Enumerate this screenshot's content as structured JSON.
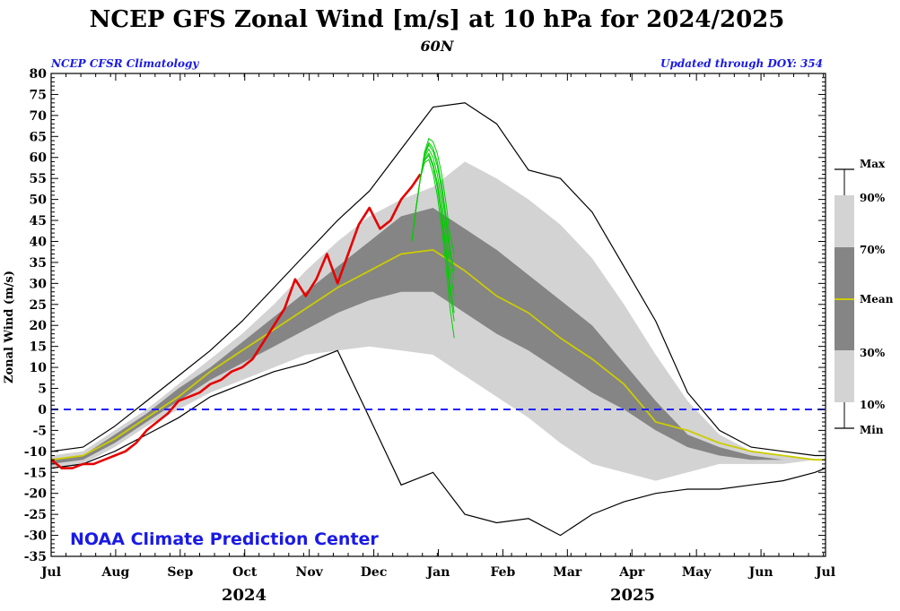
{
  "header": {
    "title": "NCEP GFS Zonal Wind [m/s] at 10 hPa for 2024/2025",
    "subtitle": "60N",
    "left_note": "NCEP CFSR Climatology",
    "right_note": "Updated through DOY: 354"
  },
  "credit": "NOAA Climate Prediction Center",
  "colors": {
    "note": "#1a1ae6",
    "credit": "#1a1ae6",
    "zero_line": "#2222ff",
    "observed": "#e60000",
    "forecast": "#00cc00",
    "mean": "#cccc00",
    "band_10_90": "#d3d3d3",
    "band_30_70": "#858585",
    "min_max": "#000000"
  },
  "legend": {
    "max": "Max",
    "p90": "90%",
    "p70": "70%",
    "mean": "Mean",
    "p30": "30%",
    "p10": "10%",
    "min": "Min"
  },
  "chart_data": {
    "type": "line",
    "title": "NCEP GFS Zonal Wind [m/s] at 10 hPa for 2024/2025",
    "subtitle": "60N",
    "ylabel": "Zonal Wind (m/s)",
    "xlabel": "",
    "ylim": [
      -35,
      80
    ],
    "yticks": [
      80,
      75,
      70,
      65,
      60,
      55,
      50,
      45,
      40,
      35,
      30,
      25,
      20,
      15,
      10,
      5,
      0,
      -5,
      -10,
      -15,
      -20,
      -25,
      -30,
      -35
    ],
    "xticks": [
      "Jul",
      "Aug",
      "Sep",
      "Oct",
      "Nov",
      "Dec",
      "Jan",
      "Feb",
      "Mar",
      "Apr",
      "May",
      "Jun",
      "Jul"
    ],
    "years": [
      "2024",
      "2025"
    ],
    "grid": false,
    "reference_line": 0,
    "x": [
      0,
      15,
      30,
      45,
      60,
      75,
      90,
      105,
      120,
      135,
      150,
      165,
      180,
      195,
      210,
      225,
      240,
      255,
      270,
      285,
      300,
      315,
      330,
      345,
      360,
      365
    ],
    "series": [
      {
        "name": "Max",
        "values": [
          -10,
          -9,
          -4,
          2,
          8,
          14,
          21,
          29,
          37,
          45,
          52,
          62,
          72,
          73,
          68,
          57,
          55,
          47,
          34,
          21,
          4,
          -5,
          -9,
          -10,
          -11,
          -11
        ]
      },
      {
        "name": "90%",
        "values": [
          -11,
          -10,
          -5,
          0,
          6,
          12,
          18,
          25,
          33,
          40,
          46,
          50,
          53,
          59,
          55,
          50,
          44,
          36,
          25,
          13,
          2,
          -6,
          -10,
          -11,
          -12,
          -12
        ]
      },
      {
        "name": "70%",
        "values": [
          -12,
          -11,
          -6,
          -1,
          5,
          10,
          16,
          22,
          28,
          34,
          40,
          46,
          48,
          43,
          38,
          32,
          26,
          20,
          11,
          2,
          -6,
          -9,
          -11,
          -12,
          -12,
          -12
        ]
      },
      {
        "name": "Mean",
        "values": [
          -12,
          -11,
          -7,
          -2,
          3,
          9,
          14,
          19,
          24,
          29,
          33,
          37,
          38,
          33,
          27,
          23,
          17,
          12,
          6,
          -3,
          -5,
          -8,
          -10,
          -11,
          -12,
          -12
        ]
      },
      {
        "name": "30%",
        "values": [
          -13,
          -12,
          -8,
          -3,
          2,
          7,
          11,
          15,
          19,
          23,
          26,
          28,
          28,
          23,
          18,
          14,
          9,
          4,
          0,
          -5,
          -9,
          -11,
          -12,
          -12,
          -12,
          -12
        ]
      },
      {
        "name": "10%",
        "values": [
          -14,
          -13,
          -9,
          -4,
          0,
          4,
          7,
          10,
          13,
          14,
          15,
          14,
          13,
          8,
          3,
          -2,
          -8,
          -13,
          -15,
          -17,
          -15,
          -13,
          -13,
          -13,
          -12,
          -12
        ]
      },
      {
        "name": "Min",
        "values": [
          -14,
          -13,
          -10,
          -6,
          -2,
          3,
          6,
          9,
          11,
          14,
          -2,
          -18,
          -15,
          -25,
          -27,
          -26,
          -30,
          -25,
          -22,
          -20,
          -19,
          -19,
          -18,
          -17,
          -15,
          -14
        ]
      },
      {
        "name": "Observed 2024",
        "x": [
          0,
          5,
          10,
          15,
          20,
          25,
          30,
          35,
          40,
          45,
          50,
          55,
          60,
          65,
          70,
          75,
          80,
          85,
          90,
          95,
          100,
          105,
          110,
          115,
          120,
          125,
          130,
          135,
          140,
          145,
          150,
          155,
          160,
          165,
          170,
          174
        ],
        "values": [
          -12,
          -14,
          -14,
          -13,
          -13,
          -12,
          -11,
          -10,
          -8,
          -5,
          -3,
          -1,
          2,
          3,
          4,
          6,
          7,
          9,
          10,
          12,
          16,
          20,
          24,
          31,
          27,
          31,
          37,
          30,
          37,
          44,
          48,
          43,
          45,
          50,
          53,
          56
        ]
      },
      {
        "name": "Forecast",
        "x": [
          170,
          172,
          174,
          176,
          178,
          180,
          182,
          184,
          186,
          188,
          190
        ],
        "values": [
          40,
          48,
          55,
          60,
          62,
          60,
          56,
          50,
          42,
          33,
          27
        ]
      }
    ]
  }
}
